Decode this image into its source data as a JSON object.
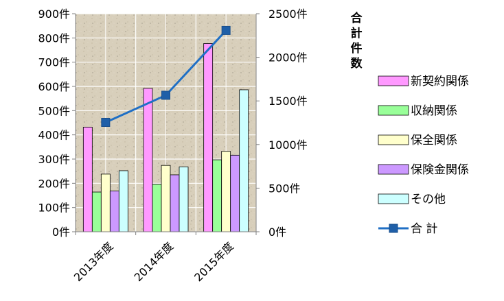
{
  "chart_data": {
    "type": "bar",
    "categories": [
      "2013年度",
      "2014年度",
      "2015年度"
    ],
    "series": [
      {
        "name": "新契約関係",
        "values": [
          432,
          592,
          777
        ],
        "color": "#ff99ff",
        "axis": "left"
      },
      {
        "name": "収納関係",
        "values": [
          164,
          196,
          297
        ],
        "color": "#99ff99",
        "axis": "left"
      },
      {
        "name": "保全関係",
        "values": [
          238,
          274,
          332
        ],
        "color": "#ffffcc",
        "axis": "left"
      },
      {
        "name": "保険金関係",
        "values": [
          168,
          235,
          316
        ],
        "color": "#cc99ff",
        "axis": "left"
      },
      {
        "name": "その他",
        "values": [
          252,
          268,
          586
        ],
        "color": "#ccffff",
        "axis": "left"
      }
    ],
    "line_series": {
      "name": "合 計",
      "values": [
        1254,
        1565,
        2308
      ],
      "color": "#1f6fc5",
      "marker_color": "#1f5fa8",
      "axis": "right"
    },
    "ylim": [
      0,
      900
    ],
    "y_ticks": [
      "0件",
      "100件",
      "200件",
      "300件",
      "400件",
      "500件",
      "600件",
      "700件",
      "800件",
      "900件"
    ],
    "y2lim": [
      0,
      2500
    ],
    "y2_ticks": [
      "0件",
      "500件",
      "1000件",
      "1500件",
      "2000件",
      "2500件"
    ],
    "y2label": [
      "合",
      "計",
      "件",
      "数"
    ],
    "legend_position": "right",
    "plot_background": "#d9d0bd",
    "grid": true
  }
}
